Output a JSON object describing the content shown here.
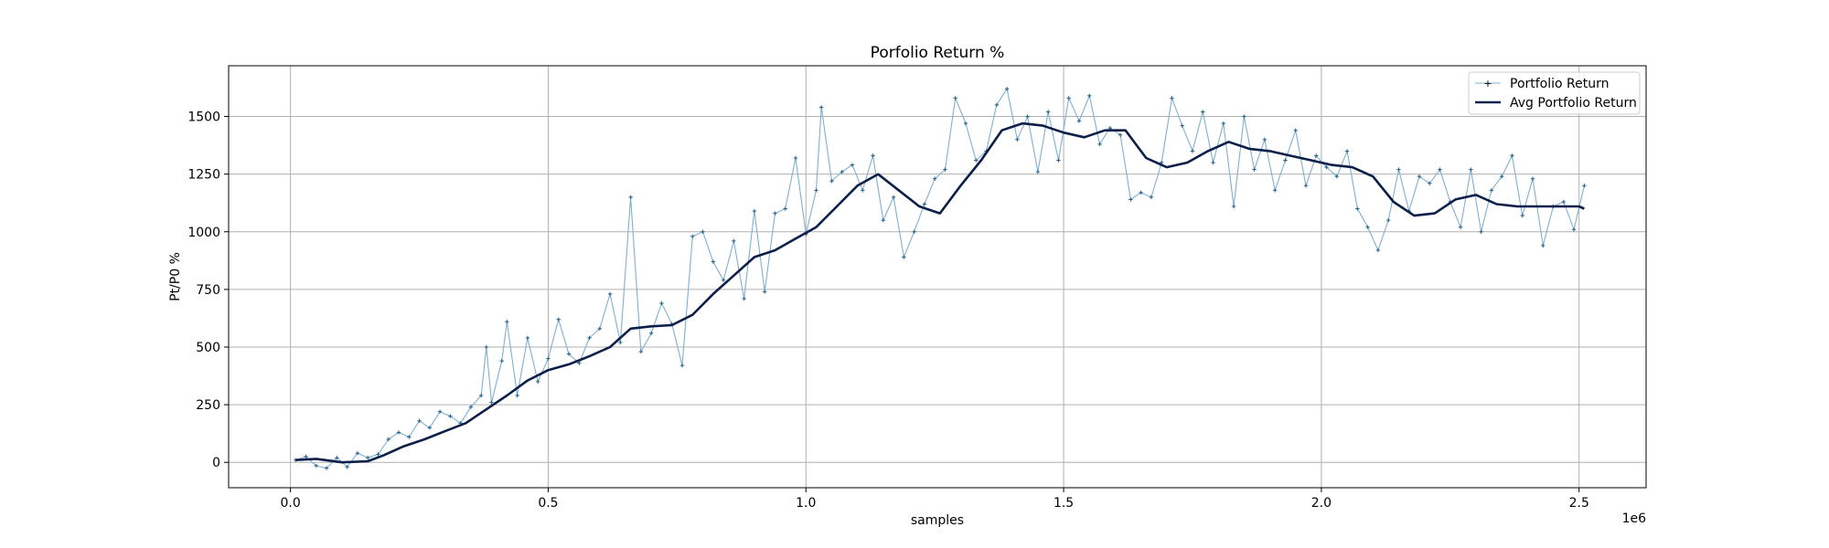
{
  "chart_data": {
    "type": "line",
    "title": "Porfolio Return %",
    "xlabel": "samples",
    "ylabel": "Pt/P0 %",
    "x_offset_label": "1e6",
    "xlim": [
      -0.12,
      2.63
    ],
    "ylim": [
      -110,
      1720
    ],
    "x_ticks": [
      0.0,
      0.5,
      1.0,
      1.5,
      2.0,
      2.5
    ],
    "x_tick_labels": [
      "0.0",
      "0.5",
      "1.0",
      "1.5",
      "2.0",
      "2.5"
    ],
    "y_ticks": [
      0,
      250,
      500,
      750,
      1000,
      1250,
      1500
    ],
    "y_tick_labels": [
      "0",
      "250",
      "500",
      "750",
      "1000",
      "1250",
      "1500"
    ],
    "grid": true,
    "legend_position": "top-right",
    "series": [
      {
        "name": "Portfolio Return",
        "color": "#7fb0d0",
        "marker": "+",
        "style": "thin-line",
        "x": [
          0.01,
          0.03,
          0.05,
          0.07,
          0.09,
          0.11,
          0.13,
          0.15,
          0.17,
          0.19,
          0.21,
          0.23,
          0.25,
          0.27,
          0.29,
          0.31,
          0.33,
          0.35,
          0.37,
          0.38,
          0.39,
          0.41,
          0.42,
          0.44,
          0.46,
          0.48,
          0.5,
          0.52,
          0.54,
          0.56,
          0.58,
          0.6,
          0.62,
          0.64,
          0.66,
          0.68,
          0.7,
          0.72,
          0.74,
          0.76,
          0.78,
          0.8,
          0.82,
          0.84,
          0.86,
          0.88,
          0.9,
          0.92,
          0.94,
          0.96,
          0.98,
          1.0,
          1.02,
          1.03,
          1.05,
          1.07,
          1.09,
          1.11,
          1.13,
          1.15,
          1.17,
          1.19,
          1.21,
          1.23,
          1.25,
          1.27,
          1.29,
          1.31,
          1.33,
          1.35,
          1.37,
          1.39,
          1.41,
          1.43,
          1.45,
          1.47,
          1.49,
          1.51,
          1.53,
          1.55,
          1.57,
          1.59,
          1.61,
          1.63,
          1.65,
          1.67,
          1.69,
          1.71,
          1.73,
          1.75,
          1.77,
          1.79,
          1.81,
          1.83,
          1.85,
          1.87,
          1.89,
          1.91,
          1.93,
          1.95,
          1.97,
          1.99,
          2.01,
          2.03,
          2.05,
          2.07,
          2.09,
          2.11,
          2.13,
          2.15,
          2.17,
          2.19,
          2.21,
          2.23,
          2.25,
          2.27,
          2.29,
          2.31,
          2.33,
          2.35,
          2.37,
          2.39,
          2.41,
          2.43,
          2.45,
          2.47,
          2.49,
          2.51
        ],
        "y": [
          10,
          25,
          -15,
          -25,
          20,
          -20,
          40,
          20,
          35,
          100,
          130,
          110,
          180,
          150,
          220,
          200,
          170,
          240,
          290,
          500,
          260,
          440,
          610,
          290,
          540,
          350,
          450,
          620,
          470,
          430,
          540,
          580,
          730,
          520,
          1150,
          480,
          560,
          690,
          600,
          420,
          980,
          1000,
          870,
          790,
          960,
          710,
          1090,
          740,
          1080,
          1100,
          1320,
          990,
          1180,
          1540,
          1220,
          1260,
          1290,
          1180,
          1330,
          1050,
          1150,
          890,
          1000,
          1120,
          1230,
          1270,
          1580,
          1470,
          1310,
          1350,
          1550,
          1620,
          1400,
          1500,
          1260,
          1520,
          1310,
          1580,
          1480,
          1590,
          1380,
          1450,
          1420,
          1140,
          1170,
          1150,
          1300,
          1580,
          1460,
          1350,
          1520,
          1300,
          1470,
          1110,
          1500,
          1270,
          1400,
          1180,
          1310,
          1440,
          1200,
          1330,
          1280,
          1240,
          1350,
          1100,
          1020,
          920,
          1050,
          1270,
          1090,
          1240,
          1210,
          1270,
          1130,
          1020,
          1270,
          1000,
          1180,
          1240,
          1330,
          1070,
          1230,
          940,
          1110,
          1130,
          1010,
          1200
        ]
      },
      {
        "name": "Avg Portfolio Return",
        "color": "#0c1f4a",
        "style": "thick-line",
        "x": [
          0.01,
          0.05,
          0.1,
          0.15,
          0.18,
          0.22,
          0.26,
          0.3,
          0.34,
          0.38,
          0.42,
          0.46,
          0.5,
          0.54,
          0.58,
          0.62,
          0.66,
          0.7,
          0.74,
          0.78,
          0.82,
          0.86,
          0.9,
          0.94,
          0.98,
          1.02,
          1.06,
          1.1,
          1.14,
          1.18,
          1.22,
          1.26,
          1.3,
          1.34,
          1.38,
          1.42,
          1.46,
          1.5,
          1.54,
          1.58,
          1.62,
          1.66,
          1.7,
          1.74,
          1.78,
          1.82,
          1.86,
          1.9,
          1.94,
          1.98,
          2.02,
          2.06,
          2.1,
          2.14,
          2.18,
          2.22,
          2.26,
          2.3,
          2.34,
          2.38,
          2.42,
          2.46,
          2.5,
          2.51
        ],
        "y": [
          10,
          15,
          0,
          5,
          30,
          70,
          100,
          135,
          170,
          230,
          290,
          355,
          400,
          425,
          460,
          500,
          580,
          590,
          595,
          640,
          730,
          810,
          890,
          920,
          970,
          1020,
          1110,
          1200,
          1250,
          1180,
          1110,
          1080,
          1200,
          1310,
          1440,
          1470,
          1460,
          1430,
          1410,
          1440,
          1440,
          1320,
          1280,
          1300,
          1350,
          1390,
          1360,
          1350,
          1330,
          1310,
          1290,
          1280,
          1240,
          1130,
          1070,
          1080,
          1140,
          1160,
          1120,
          1110,
          1110,
          1110,
          1110,
          1100
        ]
      }
    ]
  }
}
